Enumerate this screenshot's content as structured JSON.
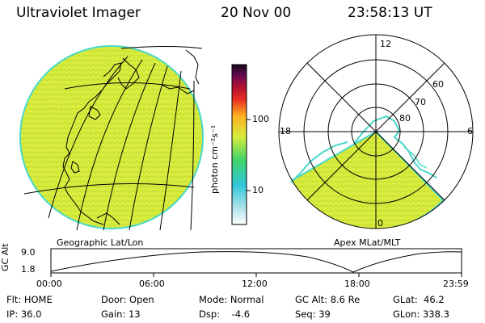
{
  "header": {
    "title": "Ultraviolet Imager",
    "date": "20 Nov 00",
    "time": "23:58:13 UT"
  },
  "colorbar": {
    "unit_label": "photon cm⁻²s⁻¹",
    "ticks": [
      {
        "label": "100",
        "value": 100
      },
      {
        "label": "10",
        "value": 10
      }
    ]
  },
  "left_panel": {
    "label": "Geographic Lat/Lon"
  },
  "right_panel": {
    "label": "Apex MLat/MLT",
    "lat_labels": [
      "80",
      "70",
      "60"
    ],
    "mlt_labels": {
      "top": "12",
      "left": "18",
      "right": "6",
      "bottom": "0"
    }
  },
  "altitude_plot": {
    "ylabel": "GC Alt",
    "yticks": [
      "9.0",
      "1.8"
    ],
    "xticks": [
      "00:00",
      "06:00",
      "12:00",
      "18:00",
      "23:59"
    ]
  },
  "status": {
    "flt": "Flt: HOME",
    "ip": "IP: 36.0",
    "door": "Door: Open",
    "gain": "Gain: 13",
    "mode": "Mode: Normal",
    "dsp": "Dsp:    -4.6",
    "gc_alt": "GC Alt: 8.6 Re",
    "seq": "Seq: 39",
    "glat": "GLat:  46.2",
    "glon": "GLon: 338.3"
  },
  "colors": {
    "emission": "#d8ec3c",
    "emission_edge": "#49d8c8"
  }
}
